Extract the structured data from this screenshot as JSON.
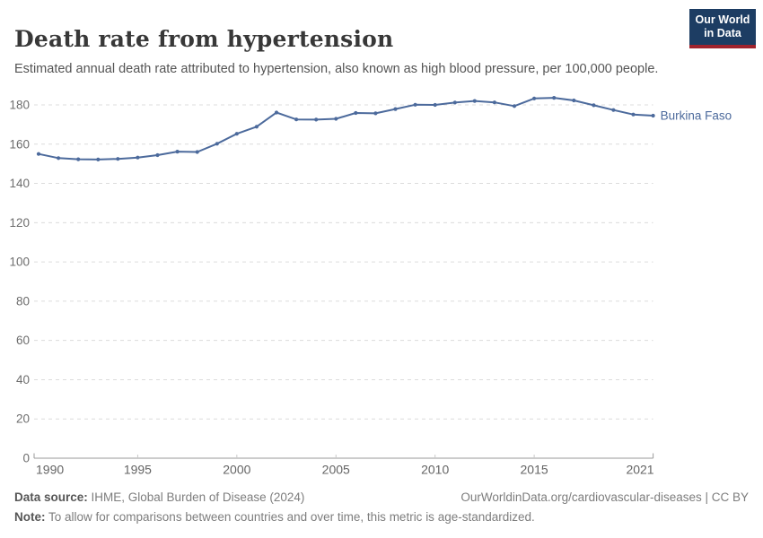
{
  "header": {
    "title": "Death rate from hypertension",
    "subtitle": "Estimated annual death rate attributed to hypertension, also known as high blood pressure, per 100,000 people.",
    "logo": {
      "line1": "Our World",
      "line2": "in Data",
      "bg_color": "#1d3d63",
      "bar_color": "#a0232d"
    }
  },
  "chart_data": {
    "type": "line",
    "title": "Death rate from hypertension",
    "xlabel": "",
    "ylabel": "",
    "xlim": [
      1990,
      2021
    ],
    "ylim": [
      0,
      190
    ],
    "x_ticks": [
      1990,
      1995,
      2000,
      2005,
      2010,
      2015,
      2021
    ],
    "y_ticks": [
      0,
      20,
      40,
      60,
      80,
      100,
      120,
      140,
      160,
      180
    ],
    "grid": "horizontal-dashed",
    "legend": "line-end-label",
    "x": [
      1990,
      1991,
      1992,
      1993,
      1994,
      1995,
      1996,
      1997,
      1998,
      1999,
      2000,
      2001,
      2002,
      2003,
      2004,
      2005,
      2006,
      2007,
      2008,
      2009,
      2010,
      2011,
      2012,
      2013,
      2014,
      2015,
      2016,
      2017,
      2018,
      2019,
      2020,
      2021
    ],
    "series": [
      {
        "name": "Burkina Faso",
        "color": "#4c6a9c",
        "values": [
          155.0,
          152.9,
          152.3,
          152.2,
          152.5,
          153.2,
          154.4,
          156.2,
          156.0,
          160.2,
          165.3,
          168.9,
          176.1,
          172.6,
          172.5,
          172.9,
          175.9,
          175.7,
          177.9,
          180.1,
          180.0,
          181.2,
          182.0,
          181.3,
          179.4,
          183.3,
          183.6,
          182.3,
          179.8,
          177.4,
          175.1,
          174.5
        ]
      }
    ],
    "colors": {
      "gridline": "#dcdcdc",
      "axis": "#9a9a9a",
      "tick_label": "#6e6e6e",
      "x_tick_label": "#646464"
    }
  },
  "footer": {
    "data_source_label": "Data source:",
    "data_source_value": " IHME, Global Burden of Disease (2024)",
    "attribution": "OurWorldinData.org/cardiovascular-diseases | CC BY",
    "note_label": "Note:",
    "note_value": " To allow for comparisons between countries and over time, this metric is age-standardized."
  }
}
